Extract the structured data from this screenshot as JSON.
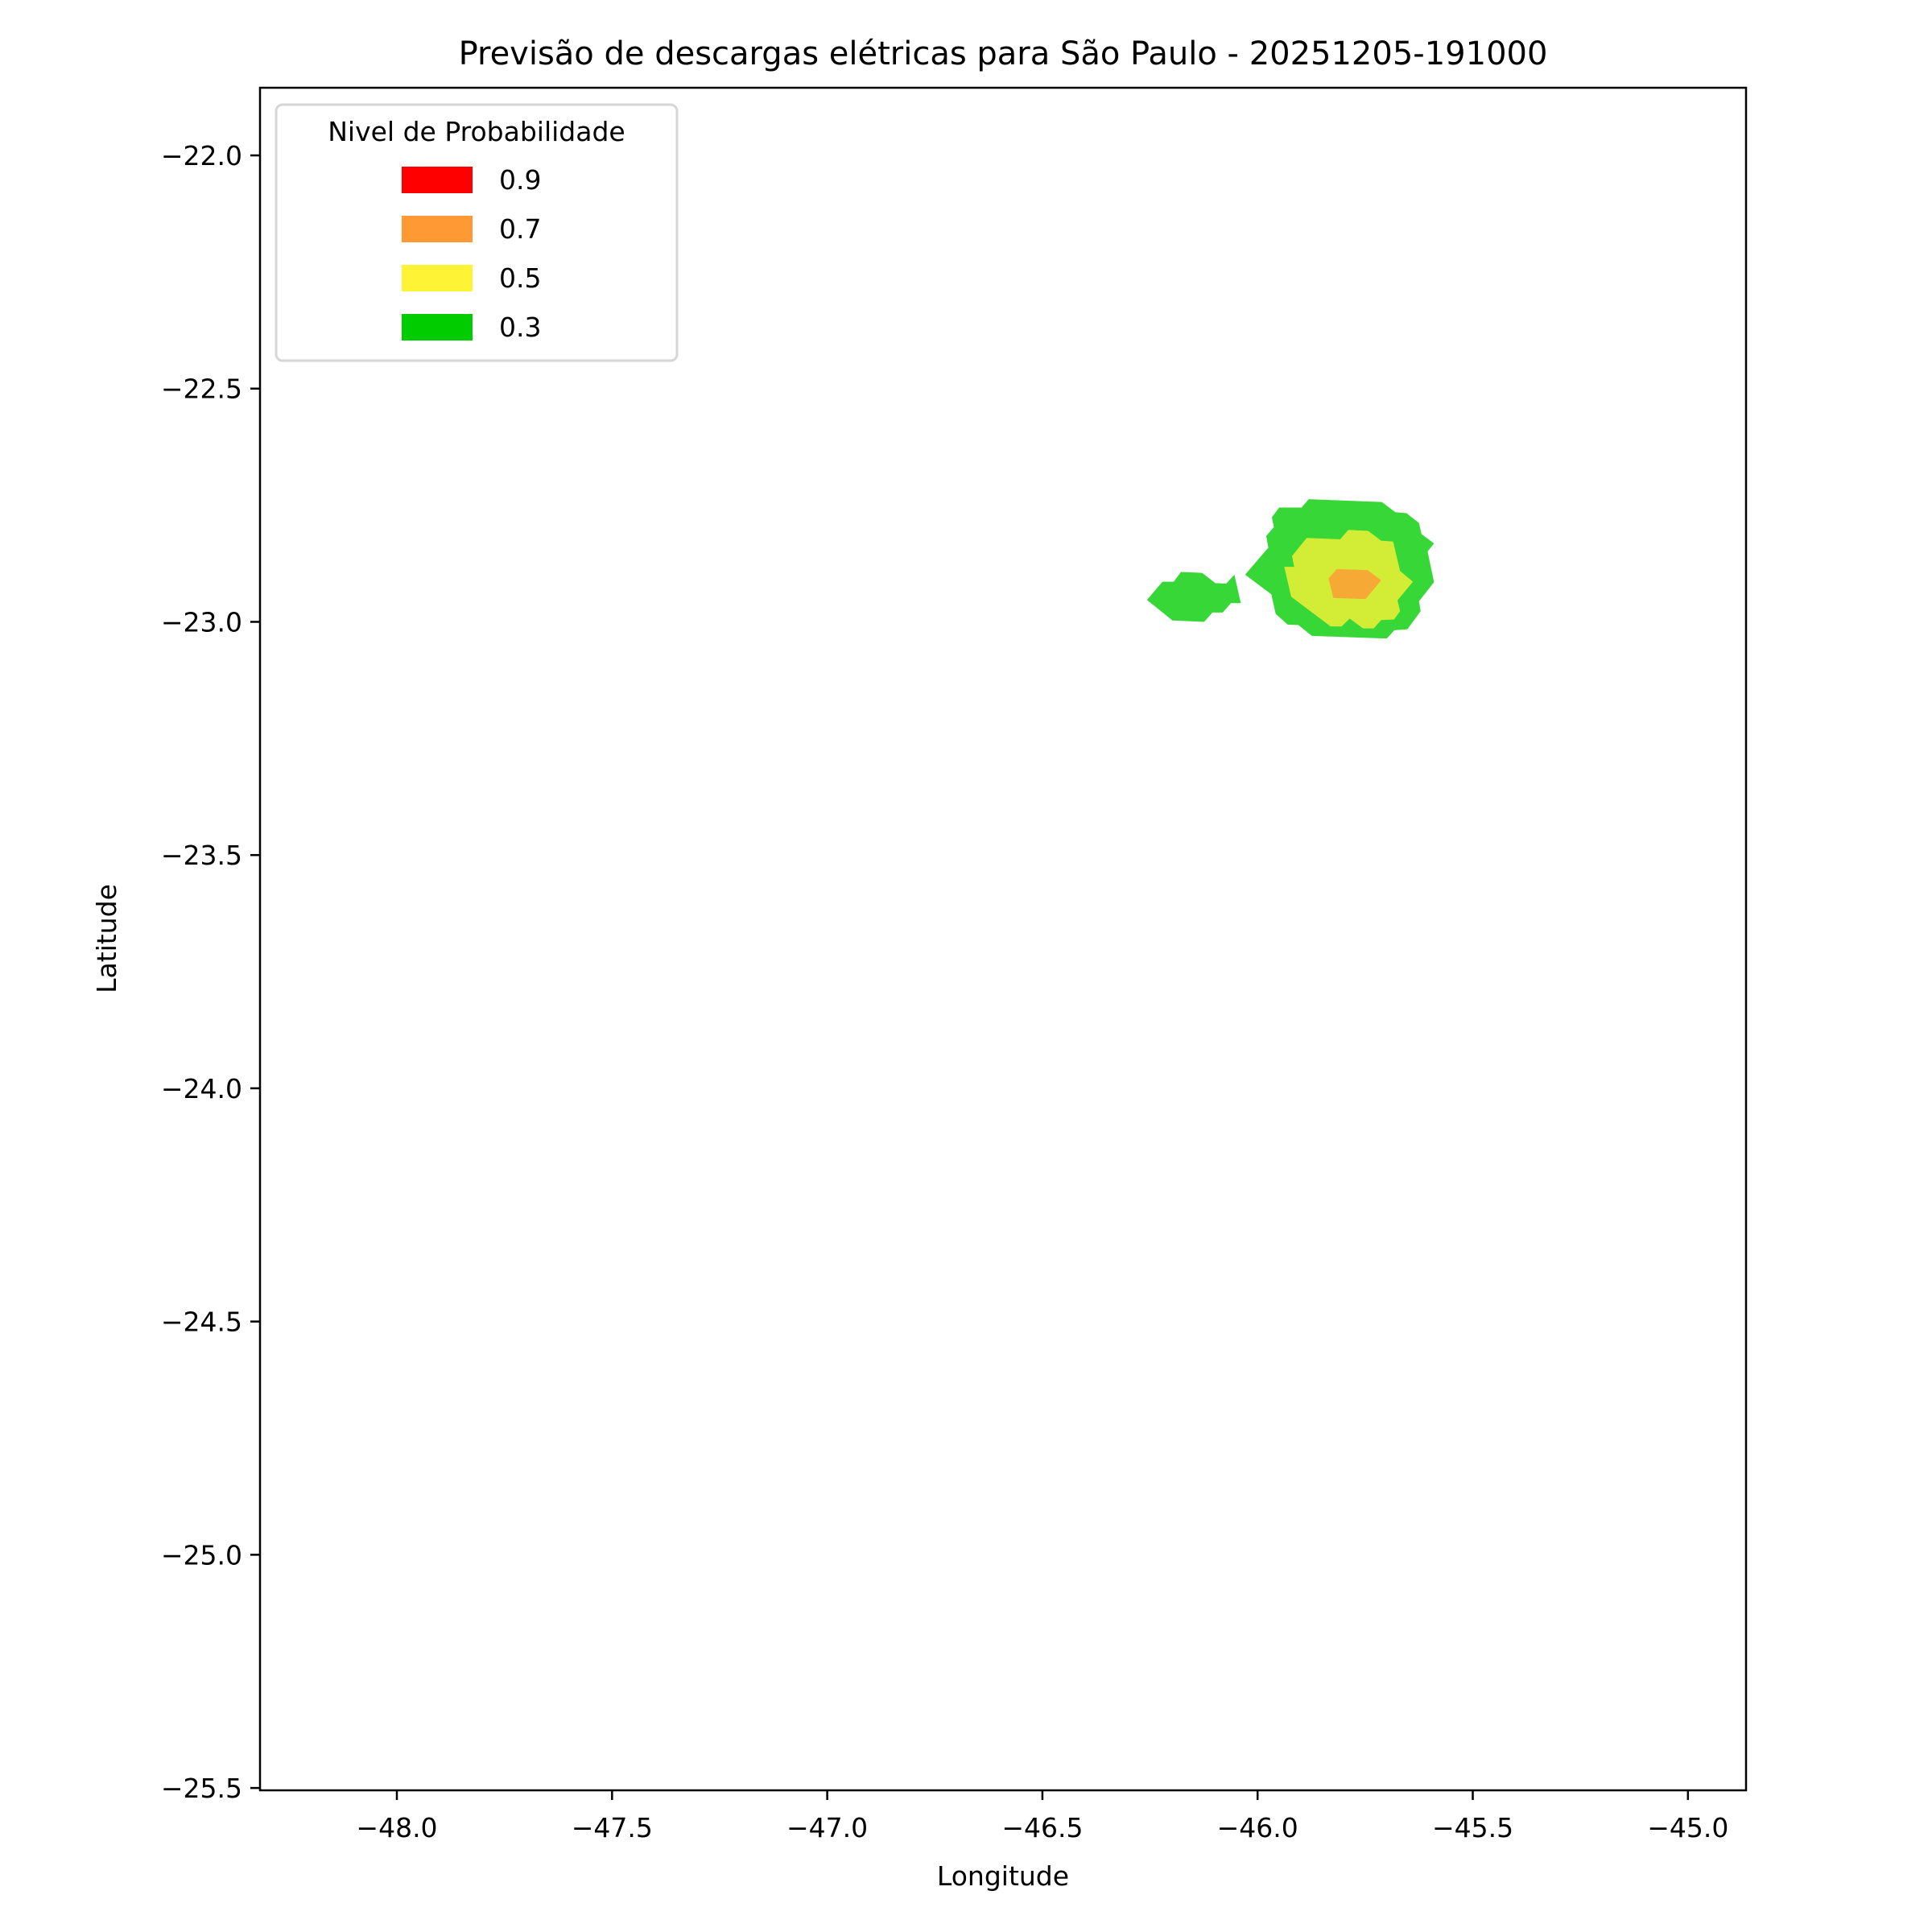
{
  "chart_data": {
    "type": "contour",
    "title": "Previsão de descargas elétricas para São Paulo - 20251205-191000",
    "xlabel": "Longitude",
    "ylabel": "Latitude",
    "xlim": [
      -48.318,
      -44.865
    ],
    "ylim": [
      -25.505,
      -21.855
    ],
    "xticks": [
      -48.0,
      -47.5,
      -47.0,
      -46.5,
      -46.0,
      -45.5,
      -45.0
    ],
    "xtick_labels": [
      "−48.0",
      "−47.5",
      "−47.0",
      "−46.5",
      "−46.0",
      "−45.5",
      "−45.0"
    ],
    "yticks": [
      -22.0,
      -22.5,
      -23.0,
      -23.5,
      -24.0,
      -24.5,
      -25.0,
      -25.5
    ],
    "ytick_labels": [
      "−22.0",
      "−22.5",
      "−23.0",
      "−23.5",
      "−24.0",
      "−24.5",
      "−25.0",
      "−25.5"
    ],
    "grid": false,
    "legend": {
      "title": "Nivel de Probabilidade",
      "placement": "top-left",
      "entries": [
        {
          "label": "0.9",
          "color": "#ff0000"
        },
        {
          "label": "0.7",
          "color": "#ff9933"
        },
        {
          "label": "0.5",
          "color": "#fff336"
        },
        {
          "label": "0.3",
          "color": "#00cc00"
        }
      ]
    },
    "regions": [
      {
        "level": "0.3",
        "color": "#37d737",
        "polygon": [
          [
            -45.881,
            -22.737
          ],
          [
            -45.711,
            -22.743
          ],
          [
            -45.68,
            -22.765
          ],
          [
            -45.654,
            -22.767
          ],
          [
            -45.625,
            -22.788
          ],
          [
            -45.619,
            -22.812
          ],
          [
            -45.59,
            -22.832
          ],
          [
            -45.605,
            -22.849
          ],
          [
            -45.59,
            -22.915
          ],
          [
            -45.625,
            -22.956
          ],
          [
            -45.621,
            -22.977
          ],
          [
            -45.652,
            -23.016
          ],
          [
            -45.682,
            -23.018
          ],
          [
            -45.7,
            -23.036
          ],
          [
            -45.874,
            -23.03
          ],
          [
            -45.905,
            -23.007
          ],
          [
            -45.93,
            -23.006
          ],
          [
            -45.958,
            -22.983
          ],
          [
            -45.968,
            -22.941
          ],
          [
            -46.029,
            -22.899
          ],
          [
            -45.975,
            -22.841
          ],
          [
            -45.98,
            -22.816
          ],
          [
            -45.962,
            -22.797
          ],
          [
            -45.967,
            -22.776
          ],
          [
            -45.95,
            -22.755
          ],
          [
            -45.898,
            -22.755
          ]
        ]
      },
      {
        "level": "0.3",
        "color": "#37d737",
        "polygon": [
          [
            -46.257,
            -22.953
          ],
          [
            -46.221,
            -22.914
          ],
          [
            -46.195,
            -22.914
          ],
          [
            -46.178,
            -22.893
          ],
          [
            -46.129,
            -22.895
          ],
          [
            -46.098,
            -22.917
          ],
          [
            -46.073,
            -22.918
          ],
          [
            -46.054,
            -22.899
          ],
          [
            -46.039,
            -22.96
          ],
          [
            -46.062,
            -22.96
          ],
          [
            -46.081,
            -22.98
          ],
          [
            -46.105,
            -22.98
          ],
          [
            -46.124,
            -23.0
          ],
          [
            -46.198,
            -22.997
          ]
        ]
      },
      {
        "level": "0.5",
        "color": "#d3ed37",
        "polygon": [
          [
            -45.886,
            -22.82
          ],
          [
            -45.808,
            -22.823
          ],
          [
            -45.789,
            -22.803
          ],
          [
            -45.743,
            -22.805
          ],
          [
            -45.713,
            -22.826
          ],
          [
            -45.685,
            -22.828
          ],
          [
            -45.669,
            -22.891
          ],
          [
            -45.639,
            -22.914
          ],
          [
            -45.675,
            -22.954
          ],
          [
            -45.669,
            -22.977
          ],
          [
            -45.683,
            -22.995
          ],
          [
            -45.713,
            -22.996
          ],
          [
            -45.73,
            -23.014
          ],
          [
            -45.755,
            -23.014
          ],
          [
            -45.786,
            -22.993
          ],
          [
            -45.805,
            -23.01
          ],
          [
            -45.83,
            -23.01
          ],
          [
            -45.922,
            -22.946
          ],
          [
            -45.938,
            -22.882
          ],
          [
            -45.915,
            -22.882
          ],
          [
            -45.92,
            -22.859
          ]
        ]
      },
      {
        "level": "0.7",
        "color": "#f6a935",
        "polygon": [
          [
            -45.816,
            -22.887
          ],
          [
            -45.744,
            -22.889
          ],
          [
            -45.713,
            -22.911
          ],
          [
            -45.749,
            -22.951
          ],
          [
            -45.824,
            -22.949
          ],
          [
            -45.835,
            -22.907
          ]
        ]
      }
    ]
  }
}
